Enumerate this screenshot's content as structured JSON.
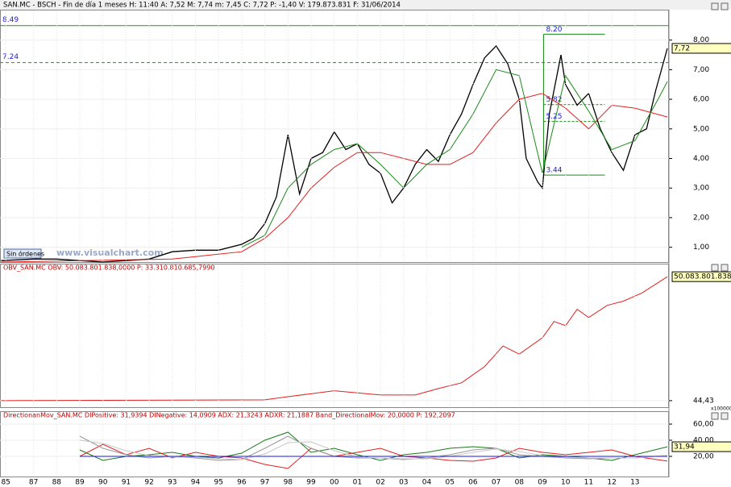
{
  "header": "SAN.MC - BSCH - Fin de día 1 meses  H: 11:40  A: 7,52  M: 7,74  m: 7,45  C: 7,72  P: -1,40  V: 179.873.831  F: 31/06/2014",
  "button": "Sin órdenes",
  "watermark": "www.visualchart.com",
  "chart_data": [
    {
      "type": "line",
      "title": null,
      "xlim": [
        1985.55,
        2014.47
      ],
      "ylim": [
        0.5,
        9.0
      ],
      "yticks": [
        {
          "value": 1,
          "label": "1,00"
        },
        {
          "value": 2,
          "label": "2,00"
        },
        {
          "value": 3,
          "label": "3,00"
        },
        {
          "value": 4,
          "label": "4,00"
        },
        {
          "value": 5,
          "label": "5,00"
        },
        {
          "value": 6,
          "label": "6,00"
        },
        {
          "value": 7,
          "label": "7,00"
        },
        {
          "value": 8,
          "label": "8,00"
        }
      ],
      "series": [
        {
          "color": "#000000",
          "x": [
            1985.6,
            1987,
            1988,
            1989,
            1990,
            1991,
            1992,
            1993,
            1994,
            1995,
            1996,
            1996.5,
            1997,
            1997.5,
            1998,
            1998.5,
            1999,
            1999.5,
            2000,
            2000.5,
            2001,
            2001.5,
            2002,
            2002.5,
            2003,
            2003.5,
            2004,
            2004.5,
            2005,
            2005.5,
            2006,
            2006.5,
            2007,
            2007.5,
            2008,
            2008.3,
            2008.8,
            2009,
            2009.3,
            2009.8,
            2010,
            2010.5,
            2011,
            2011.5,
            2012,
            2012.5,
            2013,
            2013.5,
            2013.9,
            2014.4
          ],
          "values": [
            0.55,
            0.6,
            0.6,
            0.55,
            0.5,
            0.55,
            0.6,
            0.85,
            0.9,
            0.9,
            1.1,
            1.3,
            1.8,
            2.7,
            4.8,
            2.8,
            4.0,
            4.2,
            4.9,
            4.3,
            4.5,
            3.8,
            3.5,
            2.5,
            3.0,
            3.8,
            4.3,
            3.9,
            4.8,
            5.5,
            6.5,
            7.4,
            7.8,
            7.2,
            6.0,
            4.0,
            3.2,
            3.0,
            5.5,
            7.5,
            6.5,
            5.8,
            6.2,
            5.0,
            4.2,
            3.6,
            4.8,
            5.0,
            6.3,
            7.72
          ]
        },
        {
          "color": "#1a8a1a",
          "x": [
            1996,
            1997,
            1998,
            1999,
            2000,
            2001,
            2002,
            2003,
            2004,
            2005,
            2006,
            2007,
            2008,
            2009,
            2010,
            2011,
            2012,
            2013,
            2014,
            2014.4
          ],
          "values": [
            1.0,
            1.4,
            3.0,
            3.8,
            4.3,
            4.5,
            3.8,
            3.0,
            3.8,
            4.3,
            5.5,
            7.0,
            6.8,
            3.5,
            6.8,
            5.6,
            4.3,
            4.6,
            6.0,
            6.6
          ]
        },
        {
          "color": "#e02020",
          "x": [
            1985.6,
            1993,
            1996,
            1997,
            1998,
            1999,
            2000,
            2001,
            2002,
            2003,
            2004,
            2005,
            2006,
            2007,
            2008,
            2009,
            2010,
            2011,
            2012,
            2013,
            2014.4
          ],
          "values": [
            0.5,
            0.6,
            0.85,
            1.3,
            2.0,
            3.0,
            3.7,
            4.2,
            4.2,
            4.0,
            3.8,
            3.8,
            4.2,
            5.2,
            6.0,
            6.2,
            5.7,
            5.0,
            5.8,
            5.7,
            5.4
          ]
        }
      ],
      "hlines": [
        {
          "value": 8.49,
          "label": "8.49",
          "color": "#2e8b2e",
          "dashed": false
        },
        {
          "value": 7.24,
          "label": "7.24",
          "color": "#2e8b2e",
          "dashed": true
        }
      ],
      "levels": [
        {
          "value": 8.2,
          "label": "8.20"
        },
        {
          "value": 5.82,
          "label": "5.82"
        },
        {
          "value": 5.25,
          "label": "5.25"
        },
        {
          "value": 3.44,
          "label": "3.44"
        }
      ],
      "level_x": [
        2009.05,
        2011.7
      ],
      "last": {
        "value": 7.72,
        "label": "7,72"
      }
    },
    {
      "type": "line",
      "title": "OBV_SAN.MC  OBV: 50.083.801.838,0000  P: 33.310.810.685,7990",
      "xlim": [
        1985.55,
        2014.47
      ],
      "ylim": [
        -26316,
        550263
      ],
      "yticks": [
        {
          "value": 44.43,
          "label": "44,43"
        }
      ],
      "y_unit": "x100000",
      "series": [
        {
          "color": "#e02020",
          "x": [
            1985.6,
            1997,
            1998,
            2000,
            2002,
            2003.5,
            2004.5,
            2005.5,
            2006.5,
            2007.3,
            2008,
            2009,
            2009.5,
            2010,
            2010.5,
            2011,
            2011.8,
            2012.5,
            2013.3,
            2014.4
          ],
          "values": [
            44.43,
            3300,
            16000,
            40000,
            23000,
            23000,
            49000,
            72000,
            138000,
            221000,
            188000,
            254000,
            320000,
            303000,
            369000,
            336000,
            385000,
            402000,
            435000,
            500838
          ]
        }
      ],
      "last": {
        "value": 500838.01838,
        "label": "50.083.801.838,0"
      }
    },
    {
      "type": "line",
      "title": "DirectionanMov_SAN.MC  DIPositive: 31,9394  DINegative: 14,0909  ADX: 21,3243  ADXR: 21,1887  Band_DirectionalMov: 20,0000  P: 192,2097",
      "xlim": [
        1985.55,
        2014.47
      ],
      "ylim": [
        -5,
        75
      ],
      "yticks": [
        {
          "value": 20,
          "label": "20,00"
        },
        {
          "value": 40,
          "label": "40,00"
        },
        {
          "value": 60,
          "label": "60,00"
        }
      ],
      "xticks": [
        {
          "value": 1985.8,
          "label": "85"
        },
        {
          "value": 1987,
          "label": "87"
        },
        {
          "value": 1988,
          "label": "88"
        },
        {
          "value": 1989,
          "label": "89"
        },
        {
          "value": 1990,
          "label": "90"
        },
        {
          "value": 1991,
          "label": "91"
        },
        {
          "value": 1992,
          "label": "92"
        },
        {
          "value": 1993,
          "label": "93"
        },
        {
          "value": 1994,
          "label": "94"
        },
        {
          "value": 1995,
          "label": "95"
        },
        {
          "value": 1996,
          "label": "96"
        },
        {
          "value": 1997,
          "label": "97"
        },
        {
          "value": 1998,
          "label": "98"
        },
        {
          "value": 1999,
          "label": "99"
        },
        {
          "value": 2000,
          "label": "00"
        },
        {
          "value": 2001,
          "label": "01"
        },
        {
          "value": 2002,
          "label": "02"
        },
        {
          "value": 2003,
          "label": "03"
        },
        {
          "value": 2004,
          "label": "04"
        },
        {
          "value": 2005,
          "label": "05"
        },
        {
          "value": 2006,
          "label": "06"
        },
        {
          "value": 2007,
          "label": "07"
        },
        {
          "value": 2008,
          "label": "08"
        },
        {
          "value": 2009,
          "label": "09"
        },
        {
          "value": 2010,
          "label": "10"
        },
        {
          "value": 2011,
          "label": "11"
        },
        {
          "value": 2012,
          "label": "12"
        },
        {
          "value": 2013,
          "label": "13"
        }
      ],
      "series": [
        {
          "color": "#1a7a1a",
          "x": [
            1989,
            1990,
            1991,
            1992,
            1993,
            1994,
            1995,
            1996,
            1997,
            1998,
            1999,
            2000,
            2001,
            2002,
            2003,
            2004,
            2005,
            2006,
            2007,
            2008,
            2009,
            2010,
            2011,
            2012,
            2013,
            2014.4
          ],
          "values": [
            28,
            15,
            20,
            22,
            25,
            20,
            18,
            24,
            40,
            50,
            25,
            30,
            22,
            15,
            22,
            25,
            30,
            32,
            30,
            18,
            22,
            20,
            18,
            15,
            22,
            31.94
          ]
        },
        {
          "color": "#e02020",
          "x": [
            1989,
            1990,
            1991,
            1992,
            1993,
            1994,
            1995,
            1996,
            1997,
            1998,
            1999,
            2000,
            2001,
            2002,
            2003,
            2004,
            2005,
            2006,
            2007,
            2008,
            2009,
            2010,
            2011,
            2012,
            2013,
            2014.4
          ],
          "values": [
            20,
            35,
            22,
            30,
            18,
            25,
            20,
            18,
            10,
            5,
            30,
            20,
            25,
            30,
            20,
            18,
            15,
            14,
            18,
            30,
            25,
            22,
            25,
            28,
            20,
            14.09
          ]
        },
        {
          "color": "#999999",
          "x": [
            1989,
            1990,
            1991,
            1992,
            1993,
            1994,
            1995,
            1996,
            1997,
            1998,
            1999,
            2000,
            2001,
            2002,
            2003,
            2004,
            2005,
            2006,
            2007,
            2008,
            2009,
            2010,
            2011,
            2012,
            2013,
            2014.4
          ],
          "values": [
            45,
            30,
            22,
            18,
            20,
            18,
            15,
            16,
            30,
            45,
            30,
            20,
            18,
            18,
            16,
            18,
            22,
            28,
            30,
            22,
            20,
            18,
            17,
            18,
            18,
            21.32
          ]
        },
        {
          "color": "#c8c8c8",
          "x": [
            1989,
            1990,
            1991,
            1992,
            1993,
            1994,
            1995,
            1996,
            1997,
            1998,
            1999,
            2000,
            2001,
            2002,
            2003,
            2004,
            2005,
            2006,
            2007,
            2008,
            2009,
            2010,
            2011,
            2012,
            2013,
            2014.4
          ],
          "values": [
            40,
            36,
            27,
            21,
            19,
            19,
            17,
            16,
            23,
            37,
            38,
            27,
            19,
            18,
            17,
            17,
            20,
            25,
            29,
            26,
            21,
            19,
            18,
            18,
            18,
            21.19
          ]
        },
        {
          "color": "#1a1ae0",
          "x": [
            1989,
            2014.4
          ],
          "values": [
            20,
            20
          ]
        }
      ],
      "last": {
        "value": 31.94,
        "label": "31,94"
      }
    }
  ]
}
